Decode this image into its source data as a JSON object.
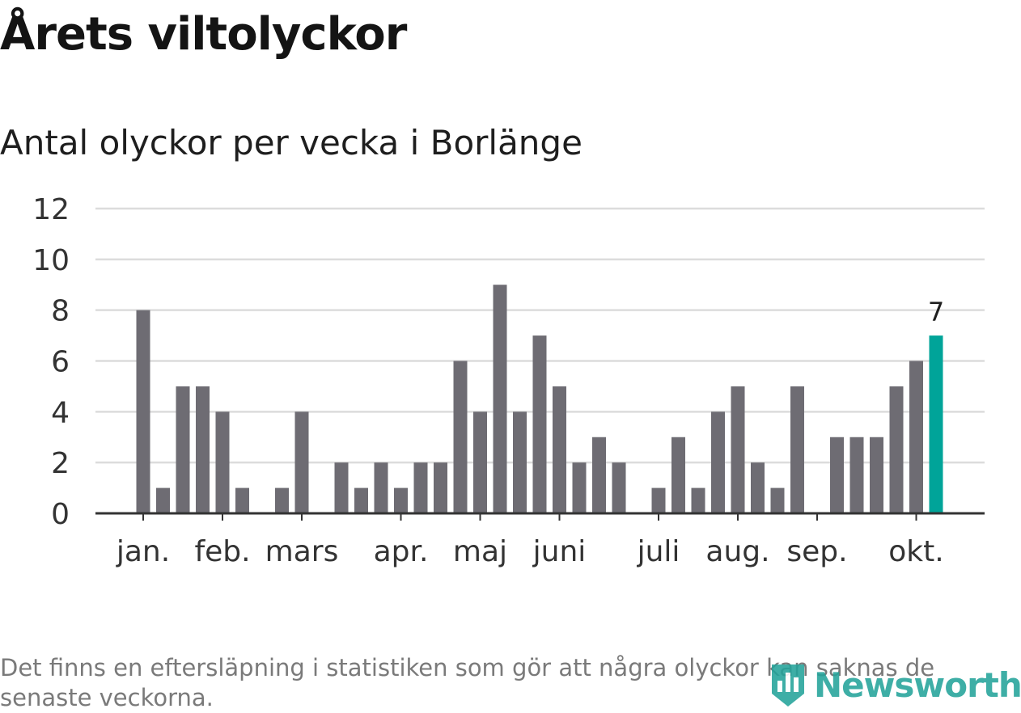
{
  "title": "Årets viltolyckor",
  "subtitle": "Antal olyckor per vecka i Borlänge",
  "footnote": "Det finns en eftersläpning i statistiken som gör att några olyckor kan saknas de senaste veckorna.",
  "logo": {
    "text": "Newsworthy",
    "icon": "bar-chart-shield-icon"
  },
  "colors": {
    "bar": "#6e6c73",
    "highlight": "#00a499",
    "grid": "#dcdcdc",
    "axis": "#333333",
    "logo": "#24a39a"
  },
  "chart_data": {
    "type": "bar",
    "values": [
      8,
      1,
      5,
      5,
      4,
      1,
      0,
      1,
      4,
      0,
      2,
      1,
      2,
      1,
      2,
      2,
      6,
      4,
      9,
      4,
      7,
      5,
      2,
      3,
      2,
      0,
      1,
      3,
      1,
      4,
      5,
      2,
      1,
      5,
      0,
      3,
      3,
      3,
      5,
      6,
      7
    ],
    "highlight_last": true,
    "data_label": "7",
    "yticks": [
      "0",
      "2",
      "4",
      "6",
      "8",
      "10",
      "12"
    ],
    "ylim": [
      0,
      12
    ],
    "month_labels": [
      {
        "label": "jan.",
        "week": 1
      },
      {
        "label": "feb.",
        "week": 5
      },
      {
        "label": "mars",
        "week": 9
      },
      {
        "label": "apr.",
        "week": 14
      },
      {
        "label": "maj",
        "week": 18
      },
      {
        "label": "juni",
        "week": 22
      },
      {
        "label": "juli",
        "week": 27
      },
      {
        "label": "aug.",
        "week": 31
      },
      {
        "label": "sep.",
        "week": 35
      },
      {
        "label": "okt.",
        "week": 40
      }
    ],
    "grid": true
  }
}
